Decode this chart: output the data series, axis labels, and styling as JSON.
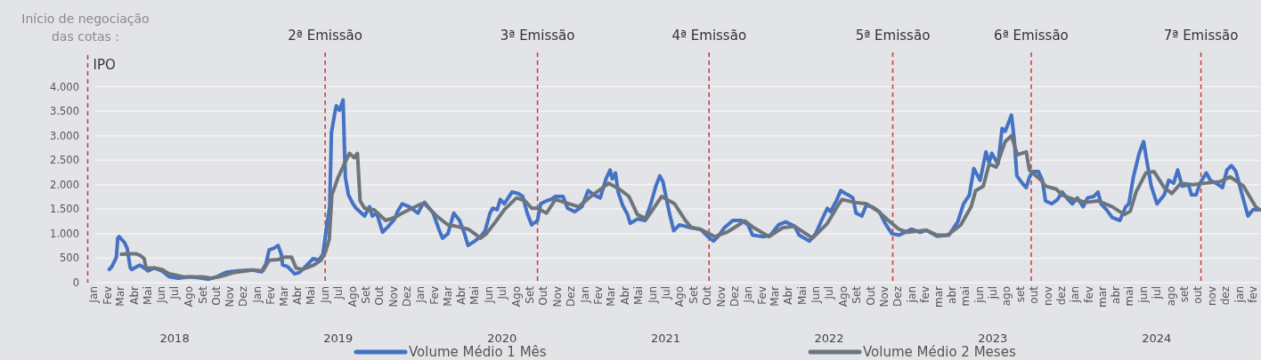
{
  "chart_data": {
    "type": "line",
    "annotations": [
      "Início de negociação\ndas cotas :",
      "2018",
      "2019",
      "2020",
      "2021",
      "2022",
      "2023",
      "2024"
    ],
    "xlim": [
      "2017-12-10",
      "2025-02-17"
    ],
    "xticks": [
      {
        "value": "2018-01",
        "label": "Jan"
      },
      {
        "value": "2018-02",
        "label": "Fev"
      },
      {
        "value": "2018-03",
        "label": "Mar"
      },
      {
        "value": "2018-04",
        "label": "Abr"
      },
      {
        "value": "2018-05",
        "label": "Mai"
      },
      {
        "value": "2018-06",
        "label": "Jun"
      },
      {
        "value": "2018-07",
        "label": "Jul"
      },
      {
        "value": "2018-08",
        "label": "Ago"
      },
      {
        "value": "2018-09",
        "label": "Set"
      },
      {
        "value": "2018-10",
        "label": "Out"
      },
      {
        "value": "2018-11",
        "label": "Nov"
      },
      {
        "value": "2018-12",
        "label": "Dez"
      },
      {
        "value": "2019-01",
        "label": "Jan"
      },
      {
        "value": "2019-02",
        "label": "Fev"
      },
      {
        "value": "2019-03",
        "label": "Mar"
      },
      {
        "value": "2019-04",
        "label": "Abr"
      },
      {
        "value": "2019-05",
        "label": "Mai"
      },
      {
        "value": "2019-06",
        "label": "Jun"
      },
      {
        "value": "2019-07",
        "label": "Jul"
      },
      {
        "value": "2019-08",
        "label": "Ago"
      },
      {
        "value": "2019-09",
        "label": "Set"
      },
      {
        "value": "2019-10",
        "label": "Out"
      },
      {
        "value": "2019-11",
        "label": "Nov"
      },
      {
        "value": "2019-12",
        "label": "Dez"
      },
      {
        "value": "2020-01",
        "label": "Jan"
      },
      {
        "value": "2020-02",
        "label": "Fev"
      },
      {
        "value": "2020-03",
        "label": "Mar"
      },
      {
        "value": "2020-04",
        "label": "Abr"
      },
      {
        "value": "2020-05",
        "label": "Mai"
      },
      {
        "value": "2020-06",
        "label": "Jun"
      },
      {
        "value": "2020-07",
        "label": "Jul"
      },
      {
        "value": "2020-08",
        "label": "Ago"
      },
      {
        "value": "2020-09",
        "label": "Set"
      },
      {
        "value": "2020-10",
        "label": "Out"
      },
      {
        "value": "2020-11",
        "label": "Nov"
      },
      {
        "value": "2020-12",
        "label": "Dez"
      },
      {
        "value": "2021-01",
        "label": "Jan"
      },
      {
        "value": "2021-02",
        "label": "Fev"
      },
      {
        "value": "2021-03",
        "label": "Mar"
      },
      {
        "value": "2021-04",
        "label": "Abr"
      },
      {
        "value": "2021-05",
        "label": "Mai"
      },
      {
        "value": "2021-06",
        "label": "Jun"
      },
      {
        "value": "2021-07",
        "label": "Jul"
      },
      {
        "value": "2021-08",
        "label": "Ago"
      },
      {
        "value": "2021-09",
        "label": "Set"
      },
      {
        "value": "2021-10",
        "label": "Out"
      },
      {
        "value": "2021-11",
        "label": "Nov"
      },
      {
        "value": "2021-12",
        "label": "Dez"
      },
      {
        "value": "2022-01",
        "label": "Jan"
      },
      {
        "value": "2022-02",
        "label": "Fev"
      },
      {
        "value": "2022-03",
        "label": "Mar"
      },
      {
        "value": "2022-04",
        "label": "Abr"
      },
      {
        "value": "2022-05",
        "label": "Mai"
      },
      {
        "value": "2022-06",
        "label": "Jun"
      },
      {
        "value": "2022-07",
        "label": "Jul"
      },
      {
        "value": "2022-08",
        "label": "Ago"
      },
      {
        "value": "2022-09",
        "label": "Set"
      },
      {
        "value": "2022-10",
        "label": "Out"
      },
      {
        "value": "2022-11",
        "label": "Nov"
      },
      {
        "value": "2022-12",
        "label": "Dez"
      },
      {
        "value": "2023-01",
        "label": "jan"
      },
      {
        "value": "2023-02",
        "label": "fev"
      },
      {
        "value": "2023-03",
        "label": "mar"
      },
      {
        "value": "2023-04",
        "label": "abr"
      },
      {
        "value": "2023-05",
        "label": "mai"
      },
      {
        "value": "2023-06",
        "label": "jun"
      },
      {
        "value": "2023-07",
        "label": "jul"
      },
      {
        "value": "2023-08",
        "label": "ago"
      },
      {
        "value": "2023-09",
        "label": "set"
      },
      {
        "value": "2023-10",
        "label": "out"
      },
      {
        "value": "2023-11",
        "label": "nov"
      },
      {
        "value": "2023-12",
        "label": "dez"
      },
      {
        "value": "2024-01",
        "label": "jan"
      },
      {
        "value": "2024-02",
        "label": "fev"
      },
      {
        "value": "2024-03",
        "label": "mar"
      },
      {
        "value": "2024-04",
        "label": "abr"
      },
      {
        "value": "2024-05",
        "label": "mai"
      },
      {
        "value": "2024-06",
        "label": "jun"
      },
      {
        "value": "2024-07",
        "label": "jul"
      },
      {
        "value": "2024-08",
        "label": "ago"
      },
      {
        "value": "2024-09",
        "label": "set"
      },
      {
        "value": "2024-10",
        "label": "out"
      },
      {
        "value": "2024-11",
        "label": "nov"
      },
      {
        "value": "2024-12",
        "label": "dez"
      },
      {
        "value": "2025-01",
        "label": "jan"
      },
      {
        "value": "2025-02",
        "label": "fev"
      }
    ],
    "ylim": [
      0,
      4700
    ],
    "yticks": [
      0,
      500,
      {
        "value": 1000,
        "label": "1.000"
      },
      {
        "value": 1500,
        "label": "1.500"
      },
      {
        "value": 2000,
        "label": "2.000"
      },
      {
        "value": 2500,
        "label": "2.500"
      },
      {
        "value": 3000,
        "label": "3.000"
      },
      {
        "value": 3500,
        "label": "3.500"
      },
      {
        "value": 4000,
        "label": "4.000"
      }
    ],
    "grid": "y",
    "legend": "bottom",
    "ref_lines": [
      {
        "axis": "x",
        "value": "2017-12-19",
        "label": "IPO",
        "color": "#c8373c",
        "line_style": "dashed"
      },
      {
        "axis": "x",
        "value": "2019-06-02",
        "label": "2ª Emissão",
        "color": "#c8373c",
        "line_style": "dashed"
      },
      {
        "axis": "x",
        "value": "2020-09-18",
        "label": "3ª Emissão",
        "color": "#c8373c",
        "line_style": "dashed"
      },
      {
        "axis": "x",
        "value": "2021-10-06",
        "label": "4ª Emissão",
        "color": "#c8373c",
        "line_style": "dashed"
      },
      {
        "axis": "x",
        "value": "2022-11-20",
        "label": "5ª Emissão",
        "color": "#c8373c",
        "line_style": "dashed"
      },
      {
        "axis": "x",
        "value": "2023-09-25",
        "label": "6ª Emissão",
        "color": "#c8373c",
        "line_style": "dashed"
      },
      {
        "axis": "x",
        "value": "2024-10-08",
        "label": "7ª Emissão",
        "color": "#c8373c",
        "line_style": "dashed"
      }
    ],
    "series": [
      {
        "name": "Volume Médio 1 Mês",
        "color": "#4472c4",
        "x": [
          "2018-02-05",
          "2018-02-11",
          "2018-02-21",
          "2018-02-24",
          "2018-02-27",
          "2018-03-11",
          "2018-03-17",
          "2018-03-24",
          "2018-03-27",
          "2018-04-14",
          "2018-04-24",
          "2018-05-03",
          "2018-05-16",
          "2018-06-03",
          "2018-06-19",
          "2018-07-09",
          "2018-08-05",
          "2018-09-01",
          "2018-09-14",
          "2018-10-03",
          "2018-10-23",
          "2018-11-19",
          "2018-12-22",
          "2019-01-11",
          "2019-01-21",
          "2019-01-28",
          "2019-02-07",
          "2019-02-17",
          "2019-02-24",
          "2019-02-27",
          "2019-03-10",
          "2019-03-26",
          "2019-04-06",
          "2019-04-19",
          "2019-05-06",
          "2019-05-19",
          "2019-05-28",
          "2019-06-05",
          "2019-06-12",
          "2019-06-16",
          "2019-06-24",
          "2019-06-27",
          "2019-07-04",
          "2019-07-12",
          "2019-07-17",
          "2019-07-24",
          "2019-08-03",
          "2019-08-10",
          "2019-08-29",
          "2019-09-09",
          "2019-09-15",
          "2019-09-25",
          "2019-10-08",
          "2019-10-21",
          "2019-11-04",
          "2019-11-11",
          "2019-11-21",
          "2019-12-07",
          "2019-12-26",
          "2020-01-06",
          "2020-01-10",
          "2020-01-29",
          "2020-02-12",
          "2020-02-19",
          "2020-03-02",
          "2020-03-15",
          "2020-03-28",
          "2020-04-08",
          "2020-04-16",
          "2020-05-01",
          "2020-05-14",
          "2020-05-24",
          "2020-06-04",
          "2020-06-10",
          "2020-06-20",
          "2020-06-27",
          "2020-07-06",
          "2020-07-23",
          "2020-08-06",
          "2020-08-16",
          "2020-08-26",
          "2020-09-05",
          "2020-09-18",
          "2020-09-25",
          "2020-10-08",
          "2020-10-18",
          "2020-10-28",
          "2020-11-14",
          "2020-11-24",
          "2020-12-10",
          "2020-12-26",
          "2021-01-09",
          "2021-01-22",
          "2021-02-05",
          "2021-02-18",
          "2021-02-27",
          "2021-03-04",
          "2021-03-11",
          "2021-03-17",
          "2021-03-27",
          "2021-04-07",
          "2021-04-13",
          "2021-04-29",
          "2021-05-16",
          "2021-05-29",
          "2021-06-09",
          "2021-06-18",
          "2021-06-25",
          "2021-07-05",
          "2021-07-11",
          "2021-07-19",
          "2021-08-01",
          "2021-08-14",
          "2021-08-27",
          "2021-09-17",
          "2021-10-03",
          "2021-10-16",
          "2021-10-26",
          "2021-11-09",
          "2021-11-28",
          "2021-12-18",
          "2022-01-01",
          "2022-01-11",
          "2022-02-04",
          "2022-02-20",
          "2022-03-10",
          "2022-03-26",
          "2022-04-15",
          "2022-04-25",
          "2022-05-18",
          "2022-06-01",
          "2022-06-14",
          "2022-06-27",
          "2022-07-04",
          "2022-07-17",
          "2022-07-27",
          "2022-08-06",
          "2022-08-13",
          "2022-08-23",
          "2022-08-30",
          "2022-09-12",
          "2022-09-22",
          "2022-10-05",
          "2022-10-21",
          "2022-11-05",
          "2022-11-18",
          "2022-12-04",
          "2023-01-01",
          "2023-01-20",
          "2023-02-03",
          "2023-02-27",
          "2023-03-25",
          "2023-04-14",
          "2023-04-27",
          "2023-05-10",
          "2023-05-20",
          "2023-06-03",
          "2023-06-16",
          "2023-06-23",
          "2023-06-29",
          "2023-07-13",
          "2023-07-22",
          "2023-07-29",
          "2023-08-12",
          "2023-08-18",
          "2023-08-24",
          "2023-09-05",
          "2023-09-14",
          "2023-09-21",
          "2023-09-28",
          "2023-10-11",
          "2023-10-20",
          "2023-10-27",
          "2023-11-10",
          "2023-11-23",
          "2023-12-03",
          "2023-12-16",
          "2023-12-26",
          "2024-01-06",
          "2024-01-19",
          "2024-01-29",
          "2024-02-12",
          "2024-02-21",
          "2024-02-28",
          "2024-03-11",
          "2024-03-24",
          "2024-04-10",
          "2024-04-23",
          "2024-04-30",
          "2024-05-10",
          "2024-05-23",
          "2024-06-02",
          "2024-06-09",
          "2024-06-19",
          "2024-07-02",
          "2024-07-18",
          "2024-07-28",
          "2024-08-08",
          "2024-08-17",
          "2024-08-27",
          "2024-09-10",
          "2024-09-17",
          "2024-09-27",
          "2024-10-06",
          "2024-10-20",
          "2024-10-29",
          "2024-11-16",
          "2024-11-25",
          "2024-12-05",
          "2024-12-15",
          "2024-12-25",
          "2025-01-08",
          "2025-01-21",
          "2025-02-01",
          "2025-02-17"
        ],
        "values": [
          270,
          330,
          520,
          910,
          940,
          820,
          700,
          300,
          270,
          360,
          300,
          240,
          300,
          240,
          120,
          90,
          120,
          90,
          70,
          120,
          210,
          240,
          260,
          220,
          390,
          670,
          700,
          760,
          580,
          360,
          330,
          180,
          210,
          330,
          490,
          460,
          580,
          1120,
          1550,
          3060,
          3490,
          3610,
          3520,
          3730,
          2150,
          1790,
          1610,
          1520,
          1360,
          1550,
          1360,
          1420,
          1030,
          1150,
          1300,
          1460,
          1610,
          1550,
          1420,
          1610,
          1640,
          1420,
          1060,
          910,
          1000,
          1420,
          1270,
          1000,
          760,
          850,
          940,
          1060,
          1420,
          1520,
          1490,
          1700,
          1610,
          1850,
          1820,
          1760,
          1420,
          1180,
          1270,
          1610,
          1670,
          1700,
          1760,
          1760,
          1520,
          1450,
          1550,
          1880,
          1790,
          1730,
          2120,
          2300,
          2120,
          2240,
          1850,
          1580,
          1390,
          1210,
          1300,
          1270,
          1610,
          1970,
          2180,
          2060,
          1610,
          1360,
          1060,
          1180,
          1150,
          1120,
          1090,
          940,
          850,
          940,
          1120,
          1270,
          1270,
          1180,
          970,
          940,
          970,
          1180,
          1240,
          1150,
          970,
          850,
          1000,
          1270,
          1520,
          1450,
          1670,
          1880,
          1820,
          1790,
          1730,
          1420,
          1360,
          1580,
          1550,
          1450,
          1180,
          1000,
          970,
          1090,
          1030,
          1070,
          950,
          970,
          1240,
          1610,
          1790,
          2330,
          2090,
          2670,
          2450,
          2640,
          2420,
          3150,
          3090,
          3420,
          2940,
          2180,
          2030,
          1940,
          2150,
          2270,
          2270,
          2090,
          1670,
          1610,
          1700,
          1850,
          1700,
          1610,
          1730,
          1550,
          1730,
          1760,
          1850,
          1610,
          1490,
          1330,
          1270,
          1550,
          1610,
          2150,
          2640,
          2880,
          2490,
          1970,
          1610,
          1790,
          2090,
          2030,
          2300,
          1970,
          2000,
          1790,
          1790,
          2030,
          2240,
          2090,
          2000,
          1940,
          2300,
          2390,
          2270,
          1790,
          1360,
          1490,
          1490
        ]
      },
      {
        "name": "Volume Médio 2 Meses",
        "color": "#6d757c",
        "x": [
          "2018-03-04",
          "2018-03-24",
          "2018-04-06",
          "2018-04-16",
          "2018-04-24",
          "2018-04-28",
          "2018-05-16",
          "2018-06-03",
          "2018-06-19",
          "2018-07-21",
          "2018-09-01",
          "2018-09-20",
          "2018-10-09",
          "2018-11-12",
          "2018-12-22",
          "2019-01-14",
          "2019-01-28",
          "2019-02-17",
          "2019-03-03",
          "2019-03-19",
          "2019-03-29",
          "2019-04-12",
          "2019-05-08",
          "2019-05-24",
          "2019-06-02",
          "2019-06-11",
          "2019-06-17",
          "2019-07-01",
          "2019-07-13",
          "2019-07-26",
          "2019-08-06",
          "2019-08-13",
          "2019-08-19",
          "2019-08-29",
          "2019-09-19",
          "2019-10-15",
          "2019-11-04",
          "2019-11-21",
          "2019-12-13",
          "2020-01-03",
          "2020-01-10",
          "2020-02-06",
          "2020-03-02",
          "2020-03-21",
          "2020-04-17",
          "2020-05-14",
          "2020-05-27",
          "2020-06-16",
          "2020-07-06",
          "2020-08-02",
          "2020-08-21",
          "2020-09-05",
          "2020-09-18",
          "2020-10-08",
          "2020-10-28",
          "2020-11-17",
          "2020-12-19",
          "2021-01-15",
          "2021-02-24",
          "2021-03-20",
          "2021-04-10",
          "2021-04-29",
          "2021-05-19",
          "2021-06-22",
          "2021-07-21",
          "2021-08-14",
          "2021-08-27",
          "2021-09-17",
          "2021-10-19",
          "2021-11-15",
          "2021-12-25",
          "2022-01-14",
          "2022-02-17",
          "2022-03-19",
          "2022-04-15",
          "2022-05-25",
          "2022-06-27",
          "2022-07-23",
          "2022-07-30",
          "2022-08-26",
          "2022-09-22",
          "2022-10-18",
          "2022-11-14",
          "2022-12-04",
          "2022-12-23",
          "2023-02-03",
          "2023-02-27",
          "2023-03-22",
          "2023-04-21",
          "2023-05-14",
          "2023-05-24",
          "2023-06-10",
          "2023-06-23",
          "2023-07-09",
          "2023-07-29",
          "2023-08-12",
          "2023-08-25",
          "2023-09-14",
          "2023-09-21",
          "2023-10-17",
          "2023-10-27",
          "2023-11-20",
          "2023-12-03",
          "2023-12-29",
          "2024-01-26",
          "2024-02-21",
          "2024-03-24",
          "2024-04-20",
          "2024-05-03",
          "2024-05-16",
          "2024-06-07",
          "2024-06-25",
          "2024-07-18",
          "2024-08-04",
          "2024-08-24",
          "2024-09-20",
          "2024-10-16",
          "2024-11-19",
          "2024-12-12",
          "2025-01-11",
          "2025-02-07",
          "2025-02-15"
        ],
        "values": [
          580,
          590,
          590,
          550,
          490,
          300,
          300,
          270,
          180,
          120,
          120,
          90,
          120,
          210,
          260,
          240,
          460,
          470,
          520,
          520,
          300,
          270,
          360,
          460,
          610,
          880,
          1790,
          2150,
          2390,
          2640,
          2550,
          2640,
          1670,
          1520,
          1490,
          1270,
          1330,
          1420,
          1520,
          1610,
          1610,
          1360,
          1180,
          1150,
          1090,
          910,
          1000,
          1240,
          1490,
          1730,
          1670,
          1520,
          1520,
          1420,
          1700,
          1640,
          1550,
          1760,
          2030,
          1910,
          1760,
          1390,
          1300,
          1760,
          1610,
          1270,
          1130,
          1090,
          940,
          1030,
          1260,
          1120,
          940,
          1120,
          1150,
          910,
          1210,
          1610,
          1700,
          1640,
          1610,
          1460,
          1240,
          1090,
          1030,
          1070,
          970,
          970,
          1180,
          1550,
          1880,
          1970,
          2420,
          2360,
          2880,
          3000,
          2610,
          2670,
          2300,
          2090,
          1970,
          1910,
          1790,
          1700,
          1640,
          1670,
          1550,
          1390,
          1460,
          1850,
          2240,
          2270,
          1940,
          1820,
          2030,
          2000,
          2030,
          2060,
          2160,
          1970,
          1550,
          1490
        ]
      }
    ]
  }
}
